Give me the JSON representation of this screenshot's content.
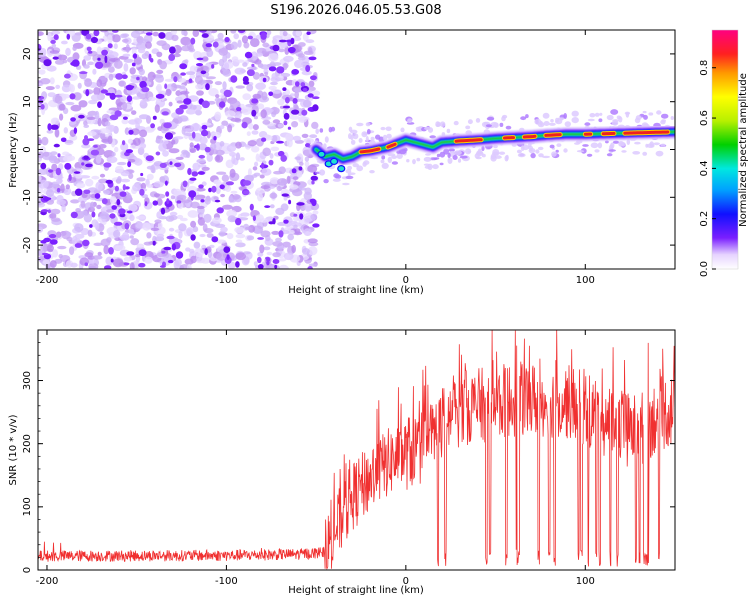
{
  "title": "S196.2026.046.05.53.G08",
  "chart_data": [
    {
      "type": "heatmap",
      "xlabel": "Height of straight line (km)",
      "ylabel": "Frequency (Hz)",
      "xlim": [
        -205,
        150
      ],
      "ylim": [
        -25,
        25
      ],
      "xticks": [
        -200,
        -100,
        0,
        100
      ],
      "yticks": [
        -20,
        -10,
        0,
        10,
        20
      ],
      "noise_region_x": [
        -205,
        -50
      ],
      "ridge": {
        "x": [
          -50,
          -45,
          -40,
          -35,
          -30,
          -25,
          -20,
          -10,
          0,
          5,
          10,
          15,
          20,
          30,
          40,
          50,
          60,
          70,
          80,
          90,
          100,
          110,
          120,
          130,
          140,
          150
        ],
        "freq": [
          0,
          -1.5,
          -1,
          -2,
          -1.5,
          -0.5,
          -0.3,
          0.5,
          2,
          1.5,
          1,
          0.5,
          1.5,
          1.8,
          2,
          2.3,
          2.5,
          2.7,
          3,
          3.2,
          3.2,
          3.3,
          3.4,
          3.5,
          3.6,
          3.7
        ]
      },
      "colorbar": {
        "label": "Normalized spectral amplitude",
        "ticks": [
          0.0,
          0.2,
          0.4,
          0.6,
          0.8
        ],
        "range": [
          0,
          0.95
        ]
      }
    },
    {
      "type": "line",
      "xlabel": "Height of straight line (km)",
      "ylabel": "SNR (10 * v/v)",
      "xlim": [
        -205,
        150
      ],
      "ylim": [
        0,
        380
      ],
      "xticks": [
        -200,
        -100,
        0,
        100
      ],
      "yticks": [
        0,
        100,
        200,
        300
      ],
      "color": "#f03030",
      "envelope": {
        "x": [
          -205,
          -100,
          -60,
          -45,
          -40,
          -30,
          -20,
          -10,
          0,
          10,
          20,
          30,
          40,
          50,
          60,
          70,
          80,
          90,
          100,
          110,
          120,
          130,
          140,
          150
        ],
        "mean": [
          22,
          23,
          25,
          28,
          60,
          115,
          145,
          170,
          185,
          195,
          230,
          255,
          260,
          265,
          270,
          270,
          268,
          266,
          255,
          240,
          225,
          220,
          245,
          255
        ]
      },
      "dropouts_x": [
        18,
        22,
        45,
        47,
        56,
        62,
        63,
        74,
        80,
        83,
        96,
        98,
        102,
        106,
        108,
        114,
        118,
        128,
        130,
        133,
        134,
        135,
        141
      ]
    }
  ]
}
